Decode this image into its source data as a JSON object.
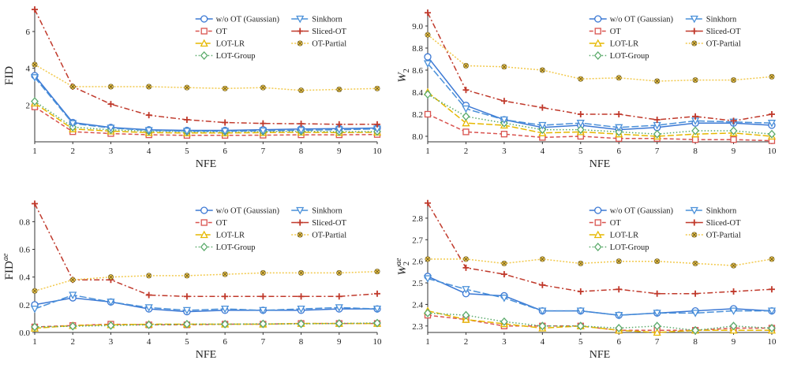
{
  "series_styles": [
    {
      "name": "w/o OT (Gaussian)",
      "color": "#3b78d4",
      "dash": "",
      "marker": "circle"
    },
    {
      "name": "OT",
      "color": "#d9534f",
      "dash": "5,3",
      "marker": "square"
    },
    {
      "name": "LOT-LR",
      "color": "#e6b800",
      "dash": "8,3",
      "marker": "triangle"
    },
    {
      "name": "LOT-Group",
      "color": "#5aaa6a",
      "dash": "1.5,2.5",
      "marker": "diamond"
    },
    {
      "name": "Sinkhorn",
      "color": "#4a90d9",
      "dash": "9,3",
      "marker": "tri-down"
    },
    {
      "name": "Sliced-OT",
      "color": "#c0392b",
      "dash": "7,3,2,3",
      "marker": "plus"
    },
    {
      "name": "OT-Partial",
      "color": "#f2c94c",
      "dash": "2,2",
      "marker": "x"
    }
  ],
  "chart_data": [
    {
      "type": "line",
      "title": "",
      "xlabel": "NFE",
      "ylabel": "FID",
      "ylabel_sup": "",
      "ylim": [
        0,
        7.2
      ],
      "yticks": [
        2,
        4,
        6
      ],
      "ytick_labels": [
        "2",
        "4",
        "6"
      ],
      "x": [
        1,
        2,
        3,
        4,
        5,
        6,
        7,
        8,
        9,
        10
      ],
      "series": [
        {
          "name": "w/o OT (Gaussian)",
          "values": [
            3.6,
            1.05,
            0.78,
            0.65,
            0.62,
            0.62,
            0.66,
            0.7,
            0.72,
            0.75
          ]
        },
        {
          "name": "OT",
          "values": [
            1.9,
            0.55,
            0.45,
            0.38,
            0.35,
            0.35,
            0.36,
            0.38,
            0.38,
            0.4
          ]
        },
        {
          "name": "LOT-LR",
          "values": [
            2.1,
            0.7,
            0.58,
            0.5,
            0.48,
            0.48,
            0.5,
            0.52,
            0.5,
            0.52
          ]
        },
        {
          "name": "LOT-Group",
          "values": [
            2.2,
            0.8,
            0.65,
            0.58,
            0.55,
            0.55,
            0.56,
            0.58,
            0.55,
            0.56
          ]
        },
        {
          "name": "Sinkhorn",
          "values": [
            3.5,
            1.0,
            0.75,
            0.62,
            0.58,
            0.58,
            0.6,
            0.63,
            0.66,
            0.7
          ]
        },
        {
          "name": "Sliced-OT",
          "values": [
            7.2,
            3.0,
            2.05,
            1.45,
            1.2,
            1.05,
            1.0,
            0.98,
            0.95,
            0.95
          ]
        },
        {
          "name": "OT-Partial",
          "values": [
            4.2,
            3.0,
            3.0,
            3.0,
            2.95,
            2.9,
            2.95,
            2.8,
            2.85,
            2.9
          ]
        }
      ]
    },
    {
      "type": "line",
      "title": "",
      "xlabel": "NFE",
      "ylabel": "W",
      "ylabel_sup": "",
      "ylabel_sub": "2",
      "ylim": [
        7.95,
        9.15
      ],
      "yticks": [
        8.0,
        8.2,
        8.4,
        8.6,
        8.8,
        9.0
      ],
      "ytick_labels": [
        "8.0",
        "8.2",
        "8.4",
        "8.6",
        "8.8",
        "9.0"
      ],
      "x": [
        1,
        2,
        3,
        4,
        5,
        6,
        7,
        8,
        9,
        10
      ],
      "series": [
        {
          "name": "w/o OT (Gaussian)",
          "values": [
            8.72,
            8.28,
            8.15,
            8.08,
            8.1,
            8.06,
            8.08,
            8.12,
            8.12,
            8.1
          ]
        },
        {
          "name": "OT",
          "values": [
            8.2,
            8.04,
            8.02,
            7.99,
            8.0,
            7.98,
            7.98,
            7.97,
            7.97,
            7.96
          ]
        },
        {
          "name": "LOT-LR",
          "values": [
            8.4,
            8.12,
            8.1,
            8.03,
            8.04,
            8.02,
            8.0,
            8.02,
            8.03,
            8.0
          ]
        },
        {
          "name": "LOT-Group",
          "values": [
            8.38,
            8.18,
            8.12,
            8.06,
            8.06,
            8.04,
            8.02,
            8.05,
            8.05,
            8.02
          ]
        },
        {
          "name": "Sinkhorn",
          "values": [
            8.66,
            8.25,
            8.15,
            8.1,
            8.12,
            8.08,
            8.1,
            8.14,
            8.13,
            8.12
          ]
        },
        {
          "name": "Sliced-OT",
          "values": [
            9.12,
            8.42,
            8.32,
            8.26,
            8.2,
            8.2,
            8.15,
            8.18,
            8.14,
            8.2
          ]
        },
        {
          "name": "OT-Partial",
          "values": [
            8.92,
            8.64,
            8.63,
            8.6,
            8.52,
            8.53,
            8.5,
            8.51,
            8.51,
            8.54
          ]
        }
      ]
    },
    {
      "type": "line",
      "title": "",
      "xlabel": "NFE",
      "ylabel": "FID",
      "ylabel_sup": "ae",
      "ylim": [
        0.0,
        0.95
      ],
      "yticks": [
        0.0,
        0.2,
        0.4,
        0.6,
        0.8
      ],
      "ytick_labels": [
        "0.0",
        "0.2",
        "0.4",
        "0.6",
        "0.8"
      ],
      "x": [
        1,
        2,
        3,
        4,
        5,
        6,
        7,
        8,
        9,
        10
      ],
      "series": [
        {
          "name": "w/o OT (Gaussian)",
          "values": [
            0.2,
            0.25,
            0.22,
            0.17,
            0.15,
            0.16,
            0.16,
            0.16,
            0.17,
            0.17
          ]
        },
        {
          "name": "OT",
          "values": [
            0.04,
            0.05,
            0.06,
            0.055,
            0.055,
            0.06,
            0.06,
            0.065,
            0.065,
            0.065
          ]
        },
        {
          "name": "LOT-LR",
          "values": [
            0.03,
            0.05,
            0.055,
            0.06,
            0.06,
            0.06,
            0.06,
            0.065,
            0.065,
            0.065
          ]
        },
        {
          "name": "LOT-Group",
          "values": [
            0.04,
            0.045,
            0.05,
            0.055,
            0.06,
            0.06,
            0.062,
            0.062,
            0.065,
            0.068
          ]
        },
        {
          "name": "Sinkhorn",
          "values": [
            0.17,
            0.27,
            0.22,
            0.18,
            0.16,
            0.17,
            0.16,
            0.17,
            0.18,
            0.17
          ]
        },
        {
          "name": "Sliced-OT",
          "values": [
            0.93,
            0.38,
            0.38,
            0.27,
            0.26,
            0.26,
            0.26,
            0.26,
            0.26,
            0.28
          ]
        },
        {
          "name": "OT-Partial",
          "values": [
            0.3,
            0.38,
            0.4,
            0.41,
            0.41,
            0.42,
            0.43,
            0.43,
            0.43,
            0.44
          ]
        }
      ]
    },
    {
      "type": "line",
      "title": "",
      "xlabel": "NFE",
      "ylabel": "W",
      "ylabel_sup": "ae",
      "ylabel_sub": "2",
      "ylim": [
        2.27,
        2.88
      ],
      "yticks": [
        2.3,
        2.4,
        2.5,
        2.6,
        2.7,
        2.8
      ],
      "ytick_labels": [
        "2.3",
        "2.4",
        "2.5",
        "2.6",
        "2.7",
        "2.8"
      ],
      "x": [
        1,
        2,
        3,
        4,
        5,
        6,
        7,
        8,
        9,
        10
      ],
      "series": [
        {
          "name": "w/o OT (Gaussian)",
          "values": [
            2.53,
            2.45,
            2.44,
            2.37,
            2.37,
            2.35,
            2.36,
            2.37,
            2.38,
            2.37
          ]
        },
        {
          "name": "OT",
          "values": [
            2.35,
            2.33,
            2.3,
            2.3,
            2.3,
            2.28,
            2.28,
            2.28,
            2.29,
            2.29
          ]
        },
        {
          "name": "LOT-LR",
          "values": [
            2.37,
            2.33,
            2.31,
            2.29,
            2.3,
            2.28,
            2.27,
            2.28,
            2.28,
            2.28
          ]
        },
        {
          "name": "LOT-Group",
          "values": [
            2.36,
            2.35,
            2.32,
            2.3,
            2.3,
            2.29,
            2.3,
            2.28,
            2.3,
            2.29
          ]
        },
        {
          "name": "Sinkhorn",
          "values": [
            2.52,
            2.47,
            2.43,
            2.37,
            2.37,
            2.35,
            2.36,
            2.36,
            2.37,
            2.37
          ]
        },
        {
          "name": "Sliced-OT",
          "values": [
            2.87,
            2.57,
            2.54,
            2.49,
            2.46,
            2.47,
            2.45,
            2.45,
            2.46,
            2.47
          ]
        },
        {
          "name": "OT-Partial",
          "values": [
            2.61,
            2.61,
            2.59,
            2.61,
            2.59,
            2.6,
            2.6,
            2.59,
            2.58,
            2.61
          ]
        }
      ]
    }
  ]
}
